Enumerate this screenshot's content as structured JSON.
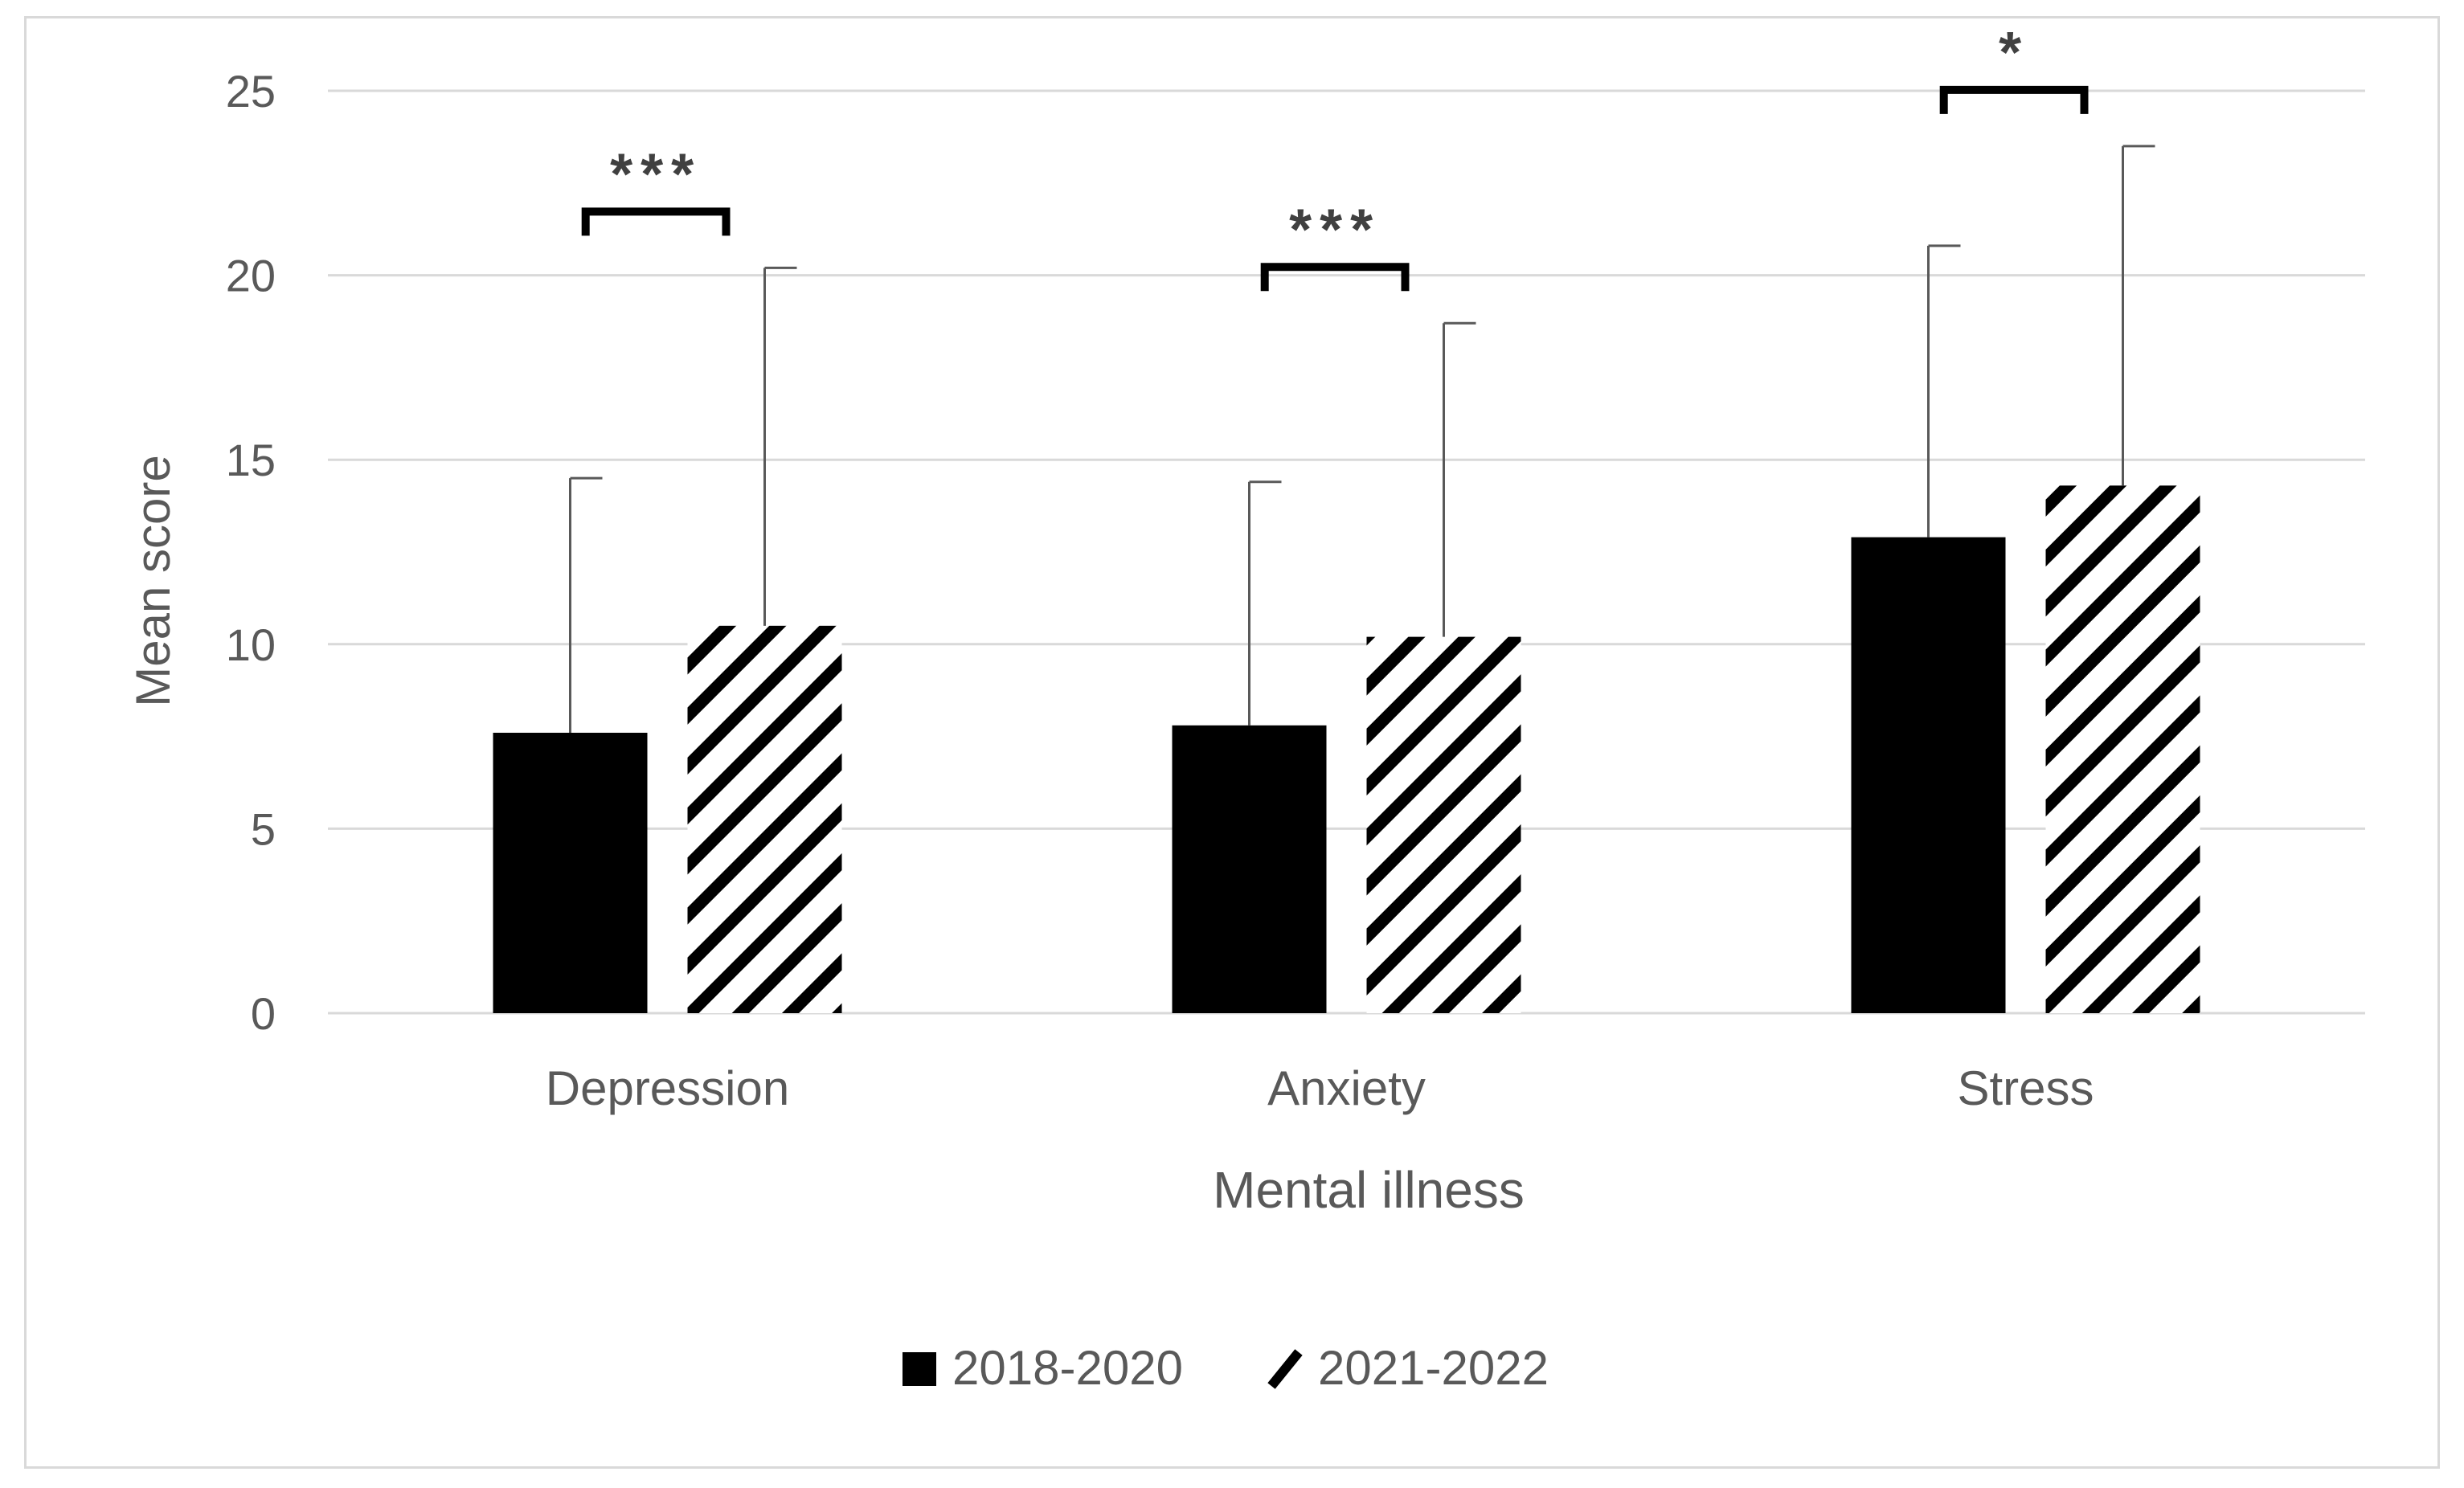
{
  "chart_data": {
    "type": "bar",
    "title": "",
    "xlabel": "Mental illness",
    "ylabel": "Mean score",
    "ylim": [
      0,
      25
    ],
    "yticks": [
      0,
      5,
      10,
      15,
      20,
      25
    ],
    "grid": true,
    "legend_position": "bottom",
    "categories": [
      "Depression",
      "Anxiety",
      "Stress"
    ],
    "series": [
      {
        "name": "2018-2020",
        "pattern": "solid",
        "color": "#000000",
        "values": [
          7.6,
          7.8,
          12.9
        ],
        "error_plus": [
          6.9,
          6.6,
          7.9
        ]
      },
      {
        "name": "2021-2022",
        "pattern": "diagonal-hatch",
        "color": "#000000",
        "values": [
          10.5,
          10.2,
          14.3
        ],
        "error_plus": [
          9.7,
          8.5,
          9.2
        ]
      }
    ],
    "significance": [
      "***",
      "***",
      "*"
    ],
    "colors": {
      "grid": "#d9d9d9",
      "axis_text": "#595959",
      "error_bar": "#595959",
      "bracket": "#000000"
    }
  }
}
